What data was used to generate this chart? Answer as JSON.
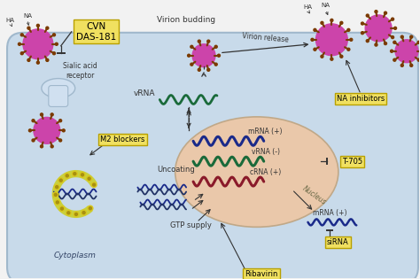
{
  "bg_color": "#f2f2f2",
  "cell_color": "#c8daea",
  "nucleus_color": "#eac8aa",
  "cell_border_color": "#a0b8cc",
  "virus_color": "#cc44aa",
  "virus_spike_color": "#7a3a00",
  "box_fill": "#f0e060",
  "box_edge": "#b8a000",
  "labels": {
    "CVN_DAS181": "CVN\nDAS-181",
    "Virion_budding": "Virion budding",
    "Virion_release": "Virion release",
    "NA_inhibitors": "NA inhibitors",
    "Sialic_acid": "Sialic acid\nreceptor",
    "M2_blockers": "M2 blockers",
    "Uncoating": "Uncoating",
    "GTP_supply": "GTP supply",
    "Cytoplasm": "Cytoplasm",
    "Nucleus": "Nucleus",
    "vRNA": "vRNA",
    "mRNA_plus": "mRNA (+)",
    "vRNA_minus": "vRNA (-)",
    "cRNA_plus": "cRNA (+)",
    "mRNA_plus2": "mRNA (+)",
    "T705": "T-705",
    "siRNA": "siRNA",
    "Ribavirin": "Ribavirin",
    "HA": "HA",
    "NA": "NA"
  },
  "colors": {
    "mRNA_color": "#1a2a8a",
    "vRNA_color": "#1a6a3a",
    "cRNA_color": "#8a1a2a",
    "arrow_color": "#333333"
  }
}
